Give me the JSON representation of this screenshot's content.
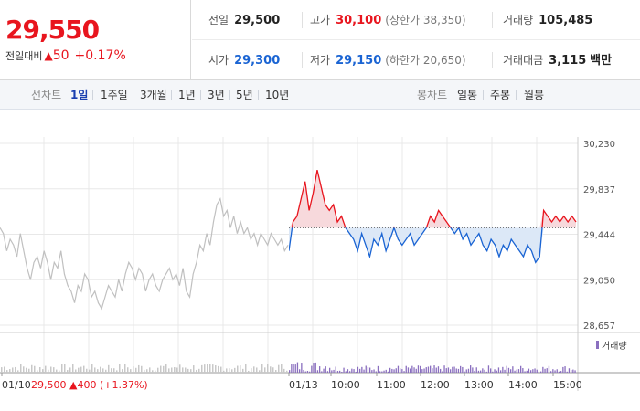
{
  "header": {
    "price": "29,550",
    "change_label": "전일대비",
    "change_arrow": "▲",
    "change_value": "50",
    "change_pct": "+0.17%"
  },
  "stats": {
    "prev_close": {
      "label": "전일",
      "value": "29,500"
    },
    "high": {
      "label": "고가",
      "value": "30,100",
      "limit_label": "(상한가",
      "limit_value": "38,350)"
    },
    "volume": {
      "label": "거래량",
      "value": "105,485"
    },
    "open": {
      "label": "시가",
      "value": "29,300"
    },
    "low": {
      "label": "저가",
      "value": "29,150",
      "limit_label": "(하한가",
      "limit_value": "20,650)"
    },
    "trade_value": {
      "label": "거래대금",
      "value": "3,115",
      "unit": "백만"
    }
  },
  "tabs": {
    "line_label": "선차트",
    "line_items": [
      "1일",
      "1주일",
      "3개월",
      "1년",
      "3년",
      "5년",
      "10년"
    ],
    "line_active": 0,
    "candle_label": "봉차트",
    "candle_items": [
      "일봉",
      "주봉",
      "월봉"
    ]
  },
  "colors": {
    "up": "#e8151e",
    "down": "#1a64d3",
    "prev": "#c0c0c0",
    "volume": "#8a6fbf",
    "grid": "#e8e8e8"
  },
  "chart_data": {
    "type": "line",
    "y_ticks": [
      "30,230",
      "29,837",
      "29,444",
      "29,050",
      "28,657"
    ],
    "ylim": [
      28657,
      30230
    ],
    "baseline": 29500,
    "x_ticks": [
      "01/10",
      "01/13",
      "10:00",
      "11:00",
      "12:00",
      "13:00",
      "14:00",
      "15:00"
    ],
    "prev_day_note": {
      "date": "01/10",
      "price": "29,500",
      "arrow": "▲",
      "change": "400",
      "pct": "(+1.37%)"
    },
    "volume_legend": "거래량",
    "prev_day_prices": [
      29500,
      29450,
      29300,
      29400,
      29350,
      29250,
      29450,
      29300,
      29150,
      29050,
      29200,
      29250,
      29150,
      29300,
      29200,
      29050,
      29200,
      29150,
      29300,
      29100,
      29000,
      28950,
      28850,
      29000,
      28950,
      29100,
      29050,
      28900,
      28950,
      28850,
      28800,
      28900,
      29000,
      28950,
      28900,
      29050,
      28950,
      29100,
      29200,
      29150,
      29050,
      29150,
      29100,
      28950,
      29050,
      29100,
      29000,
      28950,
      29050,
      29100,
      29150,
      29050,
      29100,
      29000,
      29150,
      28950,
      28900,
      29100,
      29200,
      29350,
      29300,
      29450,
      29350,
      29550,
      29700,
      29750,
      29600,
      29650,
      29500,
      29600,
      29450,
      29550,
      29450,
      29500,
      29400,
      29450,
      29350,
      29450,
      29400,
      29350,
      29450,
      29400,
      29350,
      29400,
      29300,
      29350
    ],
    "today_prices": [
      29300,
      29550,
      29600,
      29750,
      29900,
      29650,
      29800,
      30000,
      29850,
      29700,
      29650,
      29700,
      29550,
      29600,
      29500,
      29450,
      29400,
      29300,
      29450,
      29350,
      29250,
      29400,
      29350,
      29450,
      29300,
      29400,
      29500,
      29400,
      29350,
      29400,
      29450,
      29350,
      29400,
      29450,
      29500,
      29600,
      29550,
      29650,
      29600,
      29550,
      29500,
      29450,
      29500,
      29400,
      29450,
      29350,
      29400,
      29450,
      29350,
      29300,
      29400,
      29350,
      29250,
      29350,
      29300,
      29400,
      29350,
      29300,
      29250,
      29350,
      29300,
      29200,
      29250,
      29650,
      29600,
      29550,
      29600,
      29550,
      29600,
      29550,
      29600,
      29550
    ]
  }
}
